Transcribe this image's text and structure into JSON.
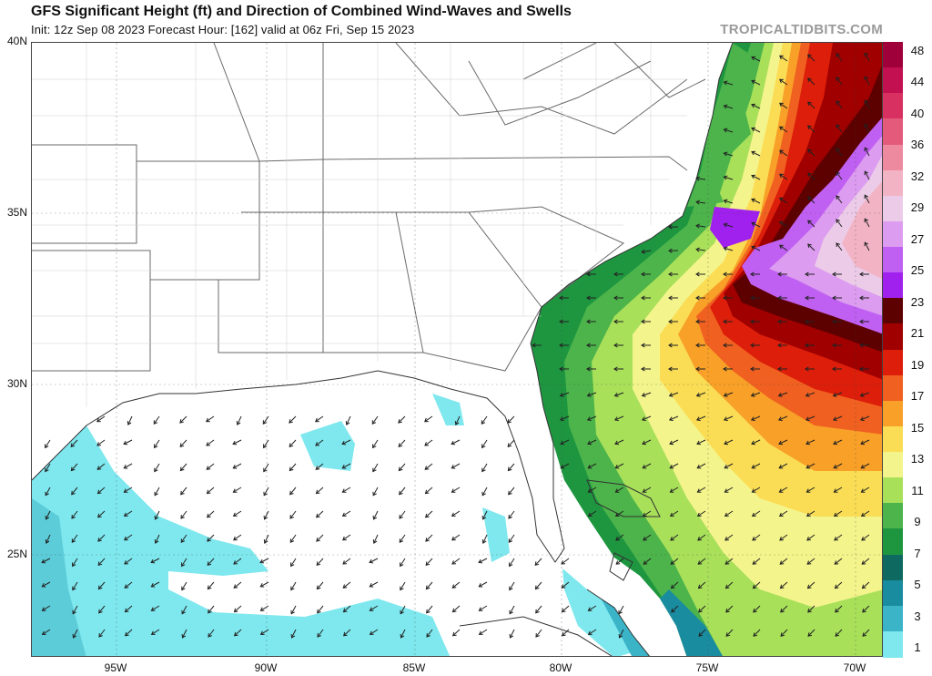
{
  "header": {
    "title": "GFS Significant Height (ft) and Direction of Combined Wind-Waves and Swells",
    "subtitle": "Init: 12z Sep 08 2023   Forecast Hour: [162]   valid at 06z Fri, Sep 15 2023",
    "brand": "TROPICALTIDBITS.COM"
  },
  "axes": {
    "lat_labels": [
      "40N",
      "35N",
      "30N",
      "25N"
    ],
    "lon_labels": [
      "95W",
      "90W",
      "85W",
      "80W",
      "75W",
      "70W"
    ]
  },
  "colorbar": {
    "labels": [
      "48",
      "44",
      "40",
      "36",
      "32",
      "29",
      "27",
      "25",
      "23",
      "21",
      "19",
      "17",
      "15",
      "13",
      "11",
      "9",
      "7",
      "5",
      "3",
      "1"
    ],
    "colors": [
      "#a0003a",
      "#c21050",
      "#d83060",
      "#e45a7a",
      "#ee8aa0",
      "#f2b4c4",
      "#eccbe8",
      "#dc9cf0",
      "#c060f2",
      "#a020ee",
      "#5c0000",
      "#a00000",
      "#dc1e0a",
      "#f06020",
      "#f8a028",
      "#fadd55",
      "#f4f48c",
      "#a8e05a",
      "#4cb44a",
      "#1e9640",
      "#0e6a60",
      "#1a8ca0",
      "#3cb4c8",
      "#7ee8ee"
    ]
  }
}
